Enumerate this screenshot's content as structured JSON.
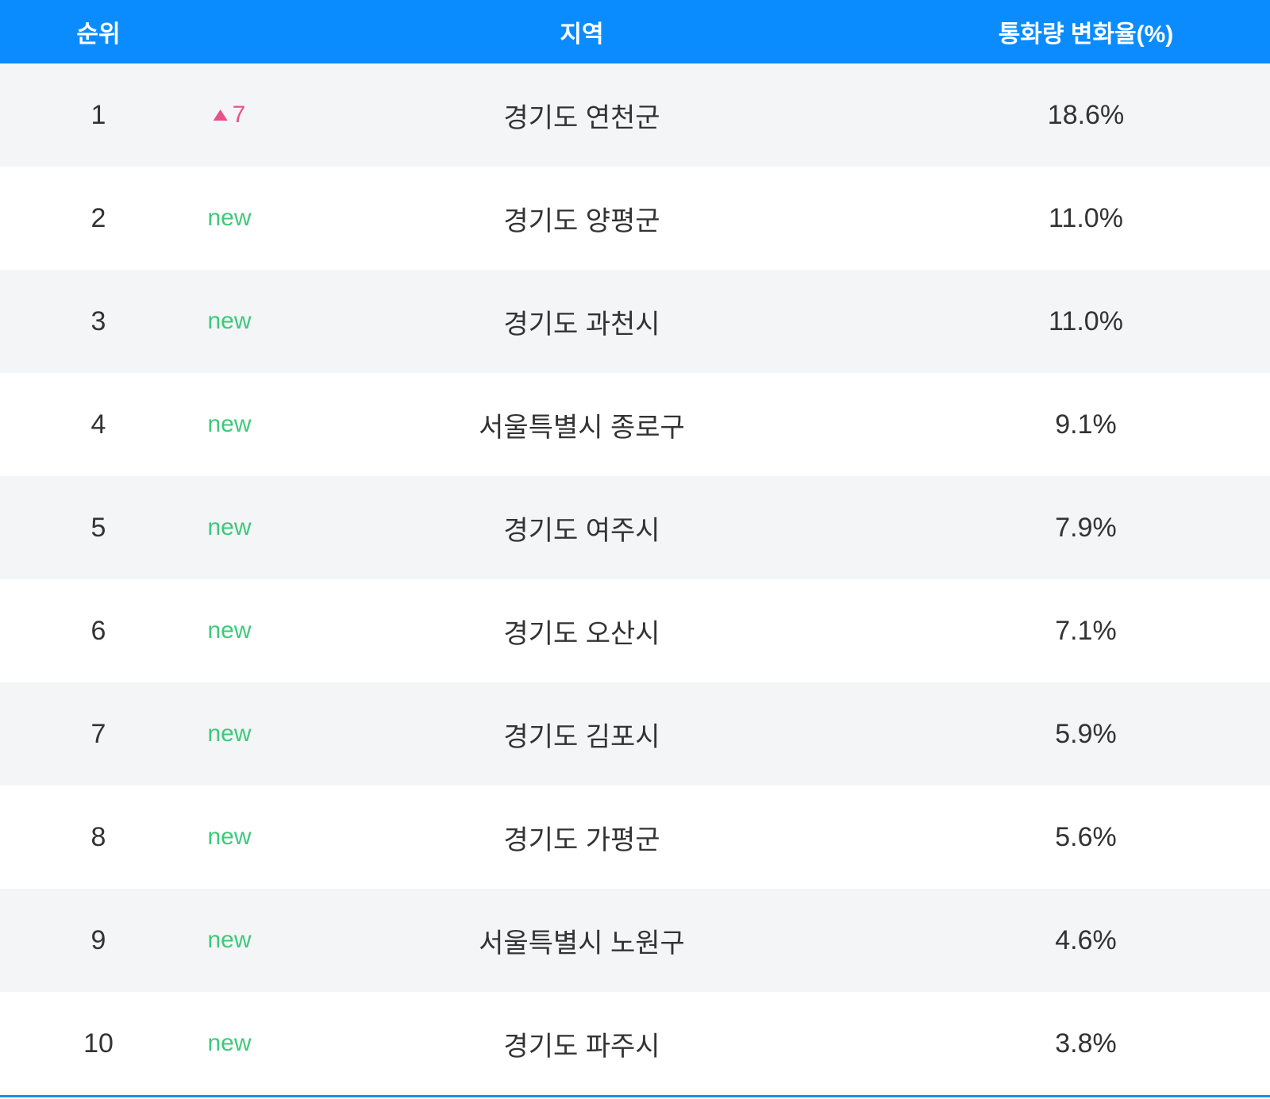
{
  "table": {
    "header": [
      "순위",
      "지역",
      "통화량 변화율(%)"
    ],
    "rows": [
      {
        "rank": "1",
        "change": "7",
        "change_type": "up",
        "region": "경기도 연천군",
        "rate": "18.6%"
      },
      {
        "rank": "2",
        "change": "new",
        "change_type": "new",
        "region": "경기도 양평군",
        "rate": "11.0%"
      },
      {
        "rank": "3",
        "change": "new",
        "change_type": "new",
        "region": "경기도 과천시",
        "rate": "11.0%"
      },
      {
        "rank": "4",
        "change": "new",
        "change_type": "new",
        "region": "서울특별시 종로구",
        "rate": "9.1%"
      },
      {
        "rank": "5",
        "change": "new",
        "change_type": "new",
        "region": "경기도 여주시",
        "rate": "7.9%"
      },
      {
        "rank": "6",
        "change": "new",
        "change_type": "new",
        "region": "경기도 오산시",
        "rate": "7.1%"
      },
      {
        "rank": "7",
        "change": "new",
        "change_type": "new",
        "region": "경기도 김포시",
        "rate": "5.9%"
      },
      {
        "rank": "8",
        "change": "new",
        "change_type": "new",
        "region": "경기도 가평군",
        "rate": "5.6%"
      },
      {
        "rank": "9",
        "change": "new",
        "change_type": "new",
        "region": "서울특별시 노원구",
        "rate": "4.6%"
      },
      {
        "rank": "10",
        "change": "new",
        "change_type": "new",
        "region": "경기도 파주시",
        "rate": "3.8%"
      }
    ]
  }
}
